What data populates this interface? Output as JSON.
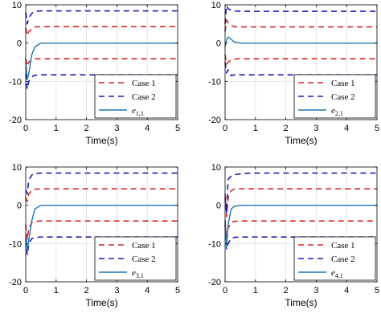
{
  "colors": {
    "case1": "#d62728",
    "case2": "#1f1fb4",
    "error": "#1f77b4",
    "grid": "#e6e6e6"
  },
  "chart_data": [
    {
      "type": "line",
      "xlabel": "Time(s)",
      "ylabel": "",
      "xlim": [
        0,
        5
      ],
      "ylim": [
        -20,
        10
      ],
      "xticks": [
        0,
        1,
        2,
        3,
        4,
        5
      ],
      "yticks": [
        10,
        0,
        -10,
        -20
      ],
      "grid": true,
      "legend_position": "bottom-right",
      "series": [
        {
          "name": "Case 1",
          "style": "dashed",
          "color_key": "case1",
          "x": [
            0,
            0.05,
            0.1,
            0.2,
            0.3,
            0.5,
            5
          ],
          "y": [
            4,
            2,
            3,
            3.8,
            4.2,
            4.3,
            4.3
          ]
        },
        {
          "name": "Case 1",
          "style": "dashed",
          "color_key": "case1",
          "x": [
            0,
            0.05,
            0.1,
            0.2,
            0.3,
            0.5,
            5
          ],
          "y": [
            -4,
            -6,
            -5,
            -4.3,
            -4.1,
            -4.1,
            -4.1
          ]
        },
        {
          "name": "Case 2",
          "style": "dashed",
          "color_key": "case2",
          "x": [
            0,
            0.05,
            0.1,
            0.2,
            0.3,
            0.5,
            5
          ],
          "y": [
            8,
            5,
            6.5,
            7.8,
            8.3,
            8.4,
            8.4
          ]
        },
        {
          "name": "Case 2",
          "style": "dashed",
          "color_key": "case2",
          "x": [
            0,
            0.05,
            0.1,
            0.2,
            0.3,
            0.5,
            5
          ],
          "y": [
            -8,
            -12,
            -10,
            -8.8,
            -8.4,
            -8.3,
            -8.3
          ]
        },
        {
          "name": "e",
          "sub": "1,1",
          "style": "solid",
          "color_key": "error",
          "x": [
            0,
            0.05,
            0.1,
            0.2,
            0.3,
            0.5,
            1,
            5
          ],
          "y": [
            -5,
            -9.5,
            -8,
            -3,
            -1,
            0,
            0,
            0
          ]
        }
      ]
    },
    {
      "type": "line",
      "xlabel": "Time(s)",
      "ylabel": "",
      "xlim": [
        0,
        5
      ],
      "ylim": [
        -20,
        10
      ],
      "xticks": [
        0,
        1,
        2,
        3,
        4,
        5
      ],
      "yticks": [
        10,
        0,
        -10,
        -20
      ],
      "grid": true,
      "legend_position": "bottom-right",
      "series": [
        {
          "name": "Case 1",
          "style": "dashed",
          "color_key": "case1",
          "x": [
            0,
            0.05,
            0.1,
            0.2,
            0.3,
            0.5,
            5
          ],
          "y": [
            3,
            6,
            5.3,
            4.6,
            4.3,
            4.2,
            4.2
          ]
        },
        {
          "name": "Case 1",
          "style": "dashed",
          "color_key": "case1",
          "x": [
            0,
            0.05,
            0.1,
            0.2,
            0.3,
            0.5,
            5
          ],
          "y": [
            -3,
            -5.5,
            -5,
            -4.4,
            -4.2,
            -4.1,
            -4.1
          ]
        },
        {
          "name": "Case 2",
          "style": "dashed",
          "color_key": "case2",
          "x": [
            0,
            0.05,
            0.1,
            0.2,
            0.3,
            0.5,
            5
          ],
          "y": [
            5,
            9.8,
            9,
            8.6,
            8.4,
            8.3,
            8.3
          ]
        },
        {
          "name": "Case 2",
          "style": "dashed",
          "color_key": "case2",
          "x": [
            0,
            0.05,
            0.1,
            0.2,
            0.3,
            0.5,
            5
          ],
          "y": [
            -5,
            -7.8,
            -7,
            -8.5,
            -8.3,
            -8.3,
            -8.3
          ]
        },
        {
          "name": "e",
          "sub": "2,1",
          "style": "solid",
          "color_key": "error",
          "x": [
            0,
            0.05,
            0.1,
            0.2,
            0.3,
            0.5,
            1,
            5
          ],
          "y": [
            -1,
            0.8,
            1.6,
            1.0,
            0.3,
            0,
            0,
            0
          ]
        }
      ]
    },
    {
      "type": "line",
      "xlabel": "Time(s)",
      "ylabel": "",
      "xlim": [
        0,
        5
      ],
      "ylim": [
        -20,
        10
      ],
      "xticks": [
        0,
        1,
        2,
        3,
        4,
        5
      ],
      "yticks": [
        10,
        0,
        -10,
        -20
      ],
      "grid": true,
      "legend_position": "bottom-right",
      "series": [
        {
          "name": "Case 1",
          "style": "dashed",
          "color_key": "case1",
          "x": [
            0,
            0.05,
            0.1,
            0.2,
            0.3,
            0.5,
            5
          ],
          "y": [
            2,
            1,
            3,
            3.9,
            4.2,
            4.3,
            4.3
          ]
        },
        {
          "name": "Case 1",
          "style": "dashed",
          "color_key": "case1",
          "x": [
            0,
            0.05,
            0.1,
            0.2,
            0.3,
            0.5,
            5
          ],
          "y": [
            -5,
            -9,
            -6,
            -4.5,
            -4.2,
            -4.1,
            -4.1
          ]
        },
        {
          "name": "Case 2",
          "style": "dashed",
          "color_key": "case2",
          "x": [
            0,
            0.05,
            0.1,
            0.2,
            0.3,
            0.5,
            5
          ],
          "y": [
            4,
            3,
            6.5,
            7.9,
            8.3,
            8.4,
            8.4
          ]
        },
        {
          "name": "Case 2",
          "style": "dashed",
          "color_key": "case2",
          "x": [
            0,
            0.05,
            0.1,
            0.2,
            0.3,
            0.5,
            5
          ],
          "y": [
            -9,
            -13,
            -10,
            -8.7,
            -8.4,
            -8.3,
            -8.3
          ]
        },
        {
          "name": "e",
          "sub": "3,1",
          "style": "solid",
          "color_key": "error",
          "x": [
            0,
            0.05,
            0.1,
            0.2,
            0.3,
            0.5,
            1,
            5
          ],
          "y": [
            -8,
            -12,
            -9,
            -4,
            -1,
            0,
            0,
            0
          ]
        }
      ]
    },
    {
      "type": "line",
      "xlabel": "Time(s)",
      "ylabel": "",
      "xlim": [
        0,
        5
      ],
      "ylim": [
        -20,
        10
      ],
      "xticks": [
        0,
        1,
        2,
        3,
        4,
        5
      ],
      "yticks": [
        10,
        0,
        -10,
        -20
      ],
      "grid": true,
      "legend_position": "bottom-right",
      "series": [
        {
          "name": "Case 1",
          "style": "dashed",
          "color_key": "case1",
          "x": [
            0,
            0.05,
            0.1,
            0.2,
            0.3,
            0.5,
            5
          ],
          "y": [
            3,
            -3,
            2,
            3.8,
            4.2,
            4.3,
            4.3
          ]
        },
        {
          "name": "Case 1",
          "style": "dashed",
          "color_key": "case1",
          "x": [
            0,
            0.05,
            0.1,
            0.2,
            0.3,
            0.5,
            5
          ],
          "y": [
            -4,
            -9,
            -6,
            -4.5,
            -4.2,
            -4.1,
            -4.1
          ]
        },
        {
          "name": "Case 2",
          "style": "dashed",
          "color_key": "case2",
          "x": [
            0,
            0.05,
            0.1,
            0.2,
            0.3,
            0.5,
            0.8,
            5
          ],
          "y": [
            2,
            -2,
            6.8,
            7.6,
            8.0,
            8.2,
            8.4,
            8.4
          ]
        },
        {
          "name": "Case 2",
          "style": "dashed",
          "color_key": "case2",
          "x": [
            0,
            0.05,
            0.1,
            0.2,
            0.3,
            0.5,
            5
          ],
          "y": [
            -5,
            -11.5,
            -10,
            -8.7,
            -8.4,
            -8.3,
            -8.3
          ]
        },
        {
          "name": "e",
          "sub": "4,1",
          "style": "solid",
          "color_key": "error",
          "x": [
            0,
            0.05,
            0.1,
            0.2,
            0.3,
            0.5,
            1,
            5
          ],
          "y": [
            -4,
            -11,
            -5,
            -1,
            -0.3,
            0,
            0,
            0
          ]
        }
      ]
    }
  ]
}
